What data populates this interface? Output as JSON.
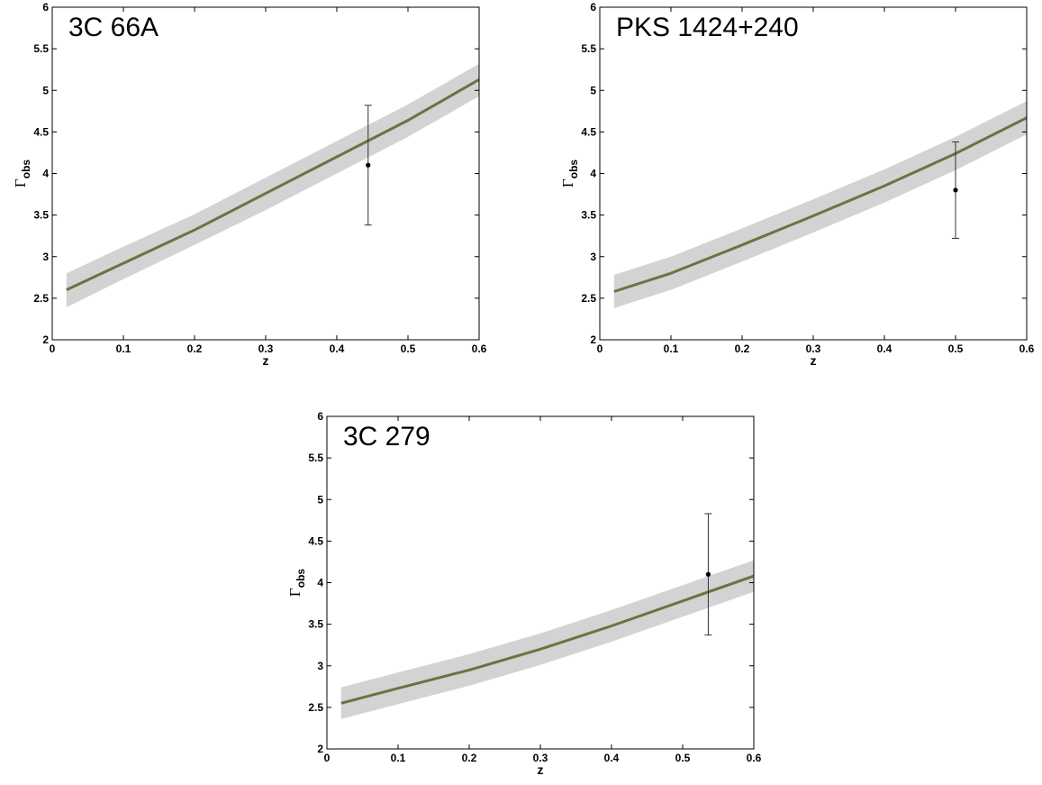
{
  "chart_data": [
    {
      "type": "line",
      "title": "3C 66A",
      "xlabel": "z",
      "ylabel_main": "Γ",
      "ylabel_sub": "obs",
      "xlim": [
        0,
        0.6
      ],
      "ylim": [
        2,
        6
      ],
      "xticks": [
        "0",
        "0.1",
        "0.2",
        "0.3",
        "0.4",
        "0.5",
        "0.6"
      ],
      "yticks": [
        "2",
        "2.5",
        "3",
        "3.5",
        "4",
        "4.5",
        "5",
        "5.5",
        "6"
      ],
      "series": [
        {
          "x": [
            0.02,
            0.1,
            0.2,
            0.3,
            0.4,
            0.5,
            0.6
          ],
          "y": [
            2.6,
            2.92,
            3.32,
            3.76,
            4.2,
            4.64,
            5.13
          ],
          "band_lower": [
            2.39,
            2.73,
            3.14,
            3.56,
            4.0,
            4.44,
            4.93
          ],
          "band_upper": [
            2.8,
            3.12,
            3.51,
            3.95,
            4.39,
            4.83,
            5.32
          ],
          "line_color": "#6b7343",
          "band_color": "#d3d3d3"
        }
      ],
      "points": [
        {
          "x": 0.444,
          "y": 4.1,
          "yerr_low": 3.38,
          "yerr_high": 4.82
        }
      ]
    },
    {
      "type": "line",
      "title": "PKS 1424+240",
      "xlabel": "z",
      "ylabel_main": "Γ",
      "ylabel_sub": "obs",
      "xlim": [
        0,
        0.6
      ],
      "ylim": [
        2,
        6
      ],
      "xticks": [
        "0",
        "0.1",
        "0.2",
        "0.3",
        "0.4",
        "0.5",
        "0.6"
      ],
      "yticks": [
        "2",
        "2.5",
        "3",
        "3.5",
        "4",
        "4.5",
        "5",
        "5.5",
        "6"
      ],
      "series": [
        {
          "x": [
            0.02,
            0.1,
            0.2,
            0.3,
            0.4,
            0.5,
            0.6
          ],
          "y": [
            2.58,
            2.8,
            3.14,
            3.49,
            3.85,
            4.24,
            4.67
          ],
          "band_lower": [
            2.38,
            2.6,
            2.94,
            3.29,
            3.65,
            4.04,
            4.47
          ],
          "band_upper": [
            2.78,
            3.0,
            3.34,
            3.69,
            4.05,
            4.44,
            4.87
          ],
          "line_color": "#6b7343",
          "band_color": "#d3d3d3"
        }
      ],
      "points": [
        {
          "x": 0.5,
          "y": 3.8,
          "yerr_low": 3.22,
          "yerr_high": 4.38
        }
      ]
    },
    {
      "type": "line",
      "title": "3C 279",
      "xlabel": "z",
      "ylabel_main": "Γ",
      "ylabel_sub": "obs",
      "xlim": [
        0,
        0.6
      ],
      "ylim": [
        2,
        6
      ],
      "xticks": [
        "0",
        "0.1",
        "0.2",
        "0.3",
        "0.4",
        "0.5",
        "0.6"
      ],
      "yticks": [
        "2",
        "2.5",
        "3",
        "3.5",
        "4",
        "4.5",
        "5",
        "5.5",
        "6"
      ],
      "series": [
        {
          "x": [
            0.02,
            0.1,
            0.2,
            0.3,
            0.4,
            0.5,
            0.6
          ],
          "y": [
            2.55,
            2.73,
            2.95,
            3.2,
            3.48,
            3.78,
            4.08
          ],
          "band_lower": [
            2.36,
            2.54,
            2.76,
            3.01,
            3.29,
            3.59,
            3.89
          ],
          "band_upper": [
            2.74,
            2.92,
            3.14,
            3.39,
            3.67,
            3.97,
            4.27
          ],
          "line_color": "#6b7343",
          "band_color": "#d3d3d3"
        }
      ],
      "points": [
        {
          "x": 0.536,
          "y": 4.1,
          "yerr_low": 3.37,
          "yerr_high": 4.83
        }
      ]
    }
  ]
}
